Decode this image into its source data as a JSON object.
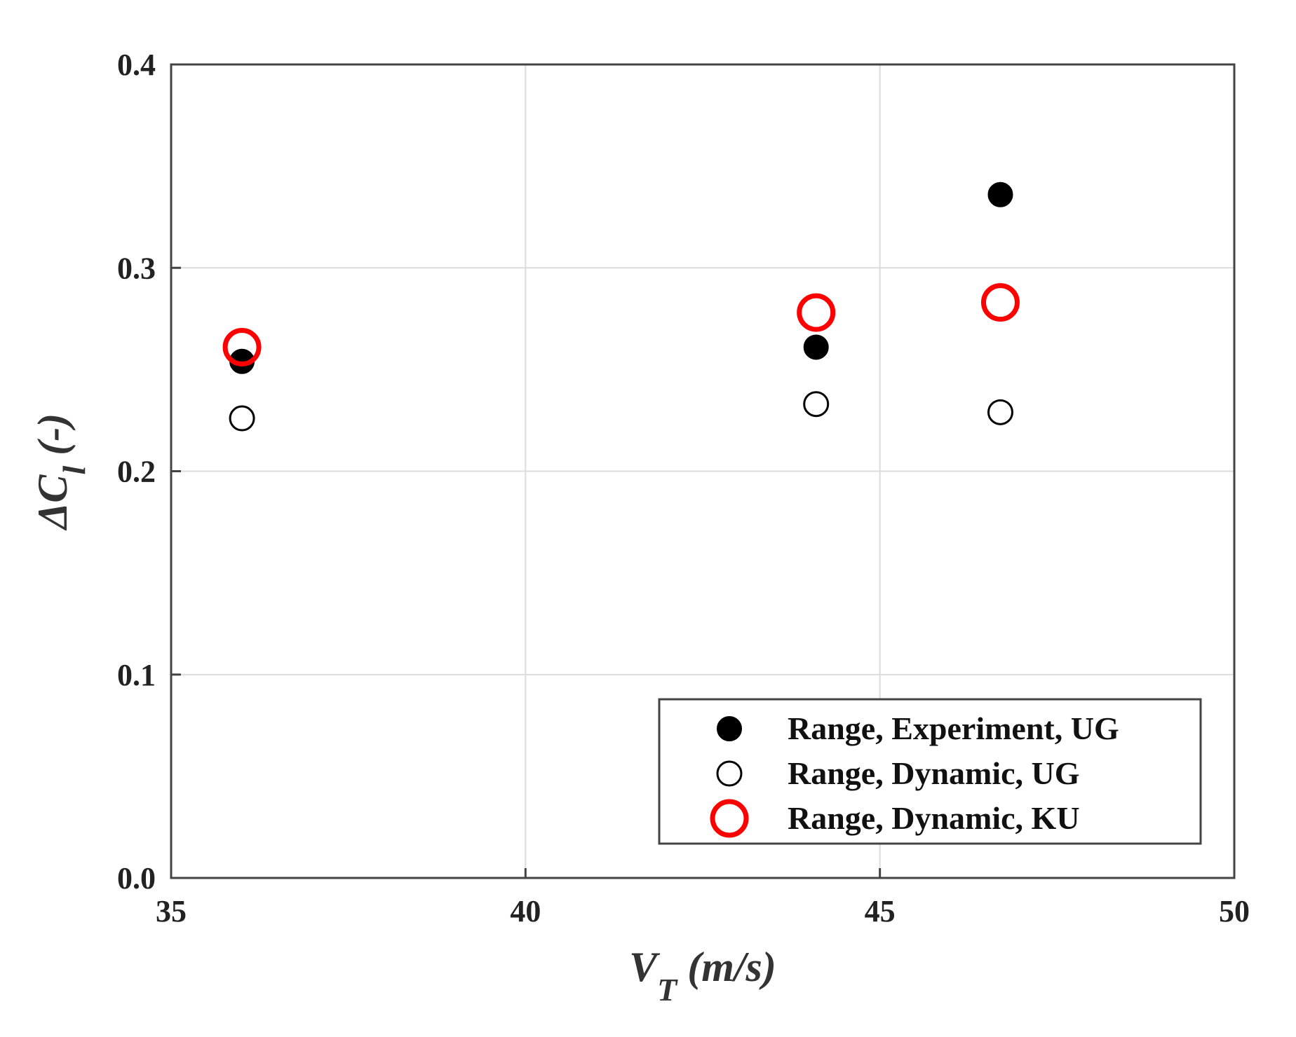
{
  "chart_data": {
    "type": "scatter",
    "title": "",
    "xlabel": "V_T (m/s)",
    "xlabel_main": "V",
    "xlabel_sub": "T",
    "xlabel_unit": " (m/s)",
    "ylabel": "ΔC_l (-)",
    "ylabel_main": "ΔC",
    "ylabel_sub": "l",
    "ylabel_unit": " (-)",
    "xlim": [
      35,
      50
    ],
    "ylim": [
      0.0,
      0.4
    ],
    "xticks": [
      "35",
      "40",
      "45",
      "50"
    ],
    "yticks": [
      "0.0",
      "0.1",
      "0.2",
      "0.3",
      "0.4"
    ],
    "grid": true,
    "legend_position": "bottom-right",
    "series": [
      {
        "name": "Range, Experiment, UG",
        "marker": "filled-circle",
        "color": "#000000",
        "points": [
          {
            "x": 36.0,
            "y": 0.254
          },
          {
            "x": 44.1,
            "y": 0.261
          },
          {
            "x": 46.7,
            "y": 0.336
          }
        ]
      },
      {
        "name": "Range, Dynamic, UG",
        "marker": "open-circle",
        "color": "#000000",
        "points": [
          {
            "x": 36.0,
            "y": 0.226
          },
          {
            "x": 44.1,
            "y": 0.233
          },
          {
            "x": 46.7,
            "y": 0.229
          }
        ]
      },
      {
        "name": "Range, Dynamic, KU",
        "marker": "open-circle-large",
        "color": "#ff0000",
        "points": [
          {
            "x": 36.0,
            "y": 0.261
          },
          {
            "x": 44.1,
            "y": 0.278
          },
          {
            "x": 46.7,
            "y": 0.283
          }
        ]
      }
    ]
  }
}
